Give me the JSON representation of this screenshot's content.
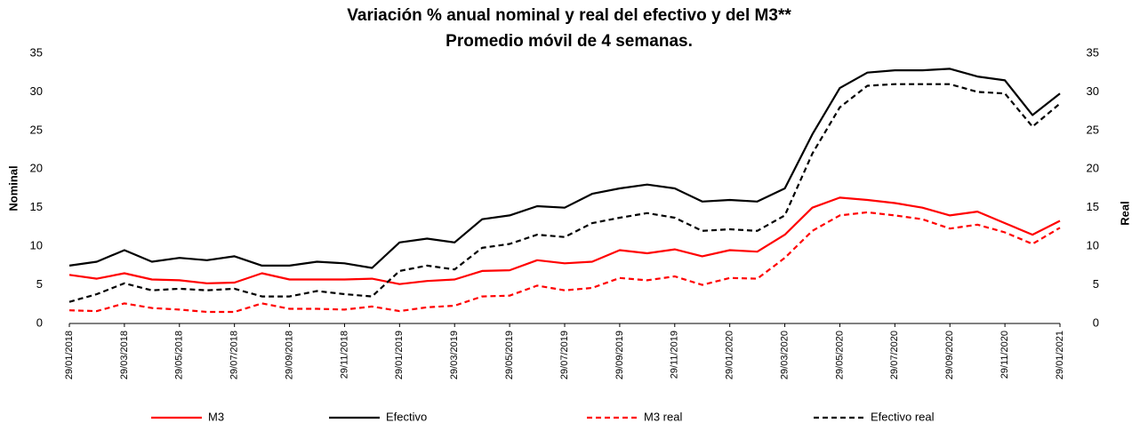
{
  "chart_data": {
    "type": "line",
    "title": "Variación % anual nominal y real del efectivo y del M3**",
    "subtitle": "Promedio móvil de 4 semanas.",
    "y_label": "Nominal",
    "y2_label": "Real",
    "categories": [
      "29/01/2018",
      null,
      "29/03/2018",
      null,
      "29/05/2018",
      null,
      "29/07/2018",
      null,
      "29/09/2018",
      null,
      "29/11/2018",
      null,
      "29/01/2019",
      null,
      "29/03/2019",
      null,
      "29/05/2019",
      null,
      "29/07/2019",
      null,
      "29/09/2019",
      null,
      "29/11/2019",
      null,
      "29/01/2020",
      null,
      "29/03/2020",
      null,
      "29/05/2020",
      null,
      "29/07/2020",
      null,
      "29/09/2020",
      null,
      "29/11/2020",
      null,
      "29/01/2021"
    ],
    "series": [
      {
        "name": "M3",
        "color": "#ff0000",
        "dashed": false,
        "values": [
          6.3,
          5.8,
          6.5,
          5.7,
          5.6,
          5.2,
          5.3,
          6.5,
          5.7,
          5.7,
          5.7,
          5.8,
          5.1,
          5.5,
          5.7,
          6.8,
          6.9,
          8.2,
          7.8,
          8.0,
          9.5,
          9.1,
          9.6,
          8.7,
          9.5,
          9.3,
          11.5,
          15.0,
          16.3,
          16.0,
          15.6,
          15.0,
          14.0,
          14.5,
          13.0,
          11.5,
          13.3
        ]
      },
      {
        "name": "Efectivo",
        "color": "#000000",
        "dashed": false,
        "values": [
          7.5,
          8.0,
          9.5,
          8.0,
          8.5,
          8.2,
          8.7,
          7.5,
          7.5,
          8.0,
          7.8,
          7.2,
          10.5,
          11.0,
          10.5,
          13.5,
          14.0,
          15.2,
          15.0,
          16.8,
          17.5,
          18.0,
          17.5,
          15.8,
          16.0,
          15.8,
          17.5,
          24.5,
          30.5,
          32.5,
          32.8,
          32.8,
          33.0,
          32.0,
          31.5,
          27.0,
          29.8
        ]
      },
      {
        "name": "M3 real",
        "color": "#ff0000",
        "dashed": true,
        "axis": "y2",
        "values": [
          1.7,
          1.6,
          2.6,
          2.0,
          1.8,
          1.5,
          1.5,
          2.6,
          1.9,
          1.9,
          1.8,
          2.2,
          1.6,
          2.1,
          2.3,
          3.5,
          3.6,
          4.9,
          4.3,
          4.6,
          5.9,
          5.6,
          6.1,
          5.0,
          5.9,
          5.8,
          8.5,
          12.0,
          14.0,
          14.4,
          14.0,
          13.5,
          12.3,
          12.8,
          11.8,
          10.3,
          12.4
        ]
      },
      {
        "name": "Efectivo real",
        "color": "#000000",
        "dashed": true,
        "axis": "y2",
        "values": [
          2.8,
          3.8,
          5.2,
          4.3,
          4.5,
          4.3,
          4.5,
          3.5,
          3.5,
          4.2,
          3.8,
          3.5,
          6.8,
          7.5,
          7.0,
          9.8,
          10.3,
          11.5,
          11.2,
          13.0,
          13.7,
          14.3,
          13.7,
          12.0,
          12.2,
          12.0,
          14.0,
          22.0,
          28.0,
          30.8,
          31.0,
          31.0,
          31.0,
          30.0,
          29.8,
          25.5,
          28.5
        ]
      }
    ],
    "ylim": [
      0,
      35
    ],
    "yticks": [
      0,
      5,
      10,
      15,
      20,
      25,
      30,
      35
    ],
    "y2lim": [
      0,
      35
    ],
    "y2ticks": [
      0,
      5,
      10,
      15,
      20,
      25,
      30,
      35
    ],
    "legend": "bottom",
    "grid": false
  }
}
